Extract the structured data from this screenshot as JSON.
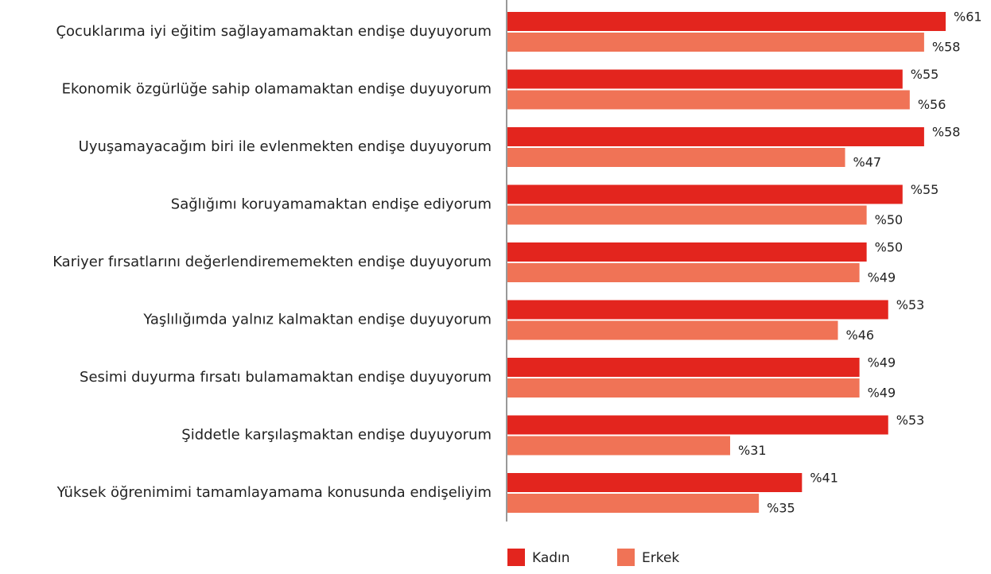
{
  "chart_data": {
    "type": "bar",
    "orientation": "horizontal",
    "categories": [
      "Çocuklarıma iyi eğitim sağlayamamaktan endişe duyuyorum",
      "Ekonomik özgürlüğe sahip olamamaktan endişe duyuyorum",
      "Uyuşamayacağım biri ile evlenmekten endişe duyuyorum",
      "Sağlığımı koruyamamaktan endişe ediyorum",
      "Kariyer fırsatlarını değerlendirememekten endişe duyuyorum",
      "Yaşlılığımda yalnız kalmaktan endişe duyuyorum",
      "Sesimi duyurma fırsatı bulamamaktan endişe duyuyorum",
      "Şiddetle karşılaşmaktan endişe duyuyorum",
      "Yüksek öğrenimimi tamamlayamama konusunda endişeliyim"
    ],
    "series": [
      {
        "name": "Kadın",
        "color": "#e3251e",
        "values": [
          61,
          55,
          58,
          55,
          50,
          53,
          49,
          53,
          41
        ],
        "value_labels": [
          "%61",
          "%55",
          "%58",
          "%55",
          "%50",
          "%53",
          "%49",
          "%53",
          "%41"
        ]
      },
      {
        "name": "Erkek",
        "color": "#f07356",
        "values": [
          58,
          56,
          47,
          50,
          49,
          46,
          49,
          31,
          35
        ],
        "value_labels": [
          "%58",
          "%56",
          "%47",
          "%50",
          "%49",
          "%46",
          "%49",
          "%31",
          "%35"
        ]
      }
    ],
    "legend": "bottom"
  }
}
